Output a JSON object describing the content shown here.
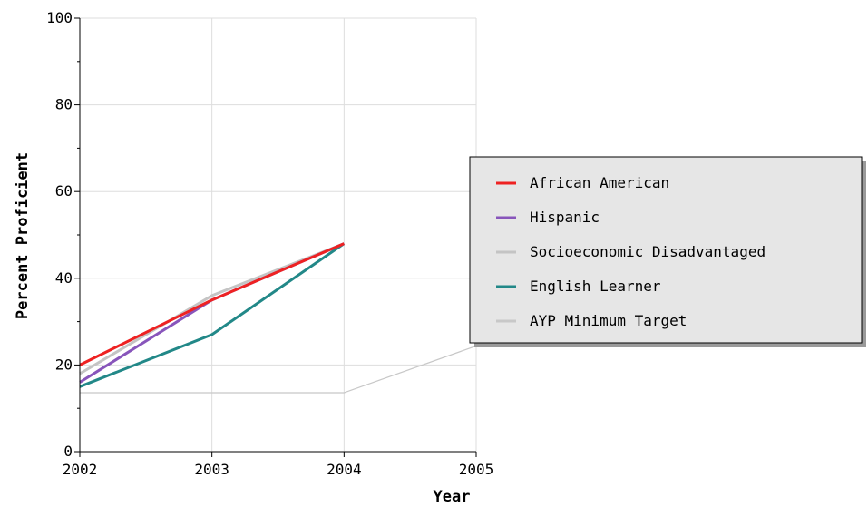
{
  "chart_data": {
    "type": "line",
    "xlabel": "Year",
    "ylabel": "Percent Proficient",
    "x": [
      2002,
      2003,
      2004,
      2005
    ],
    "xlim": [
      2002,
      2005
    ],
    "ylim": [
      0,
      100
    ],
    "yticks": [
      0,
      20,
      40,
      60,
      80,
      100
    ],
    "grid": true,
    "legend_position": "right",
    "series": [
      {
        "name": "African American",
        "color": "#ee2222",
        "values": [
          20,
          35,
          48,
          null
        ]
      },
      {
        "name": "Hispanic",
        "color": "#8855bb",
        "values": [
          16,
          35,
          48,
          null
        ]
      },
      {
        "name": "Socioeconomic Disadvantaged",
        "color": "#c4c4c4",
        "values": [
          18,
          36,
          48,
          null
        ]
      },
      {
        "name": "English Learner",
        "color": "#228888",
        "values": [
          15,
          27,
          48,
          null
        ]
      },
      {
        "name": "AYP Minimum Target",
        "color": "#c8c8c8",
        "values": [
          13.6,
          13.6,
          13.6,
          24.4
        ]
      }
    ]
  }
}
